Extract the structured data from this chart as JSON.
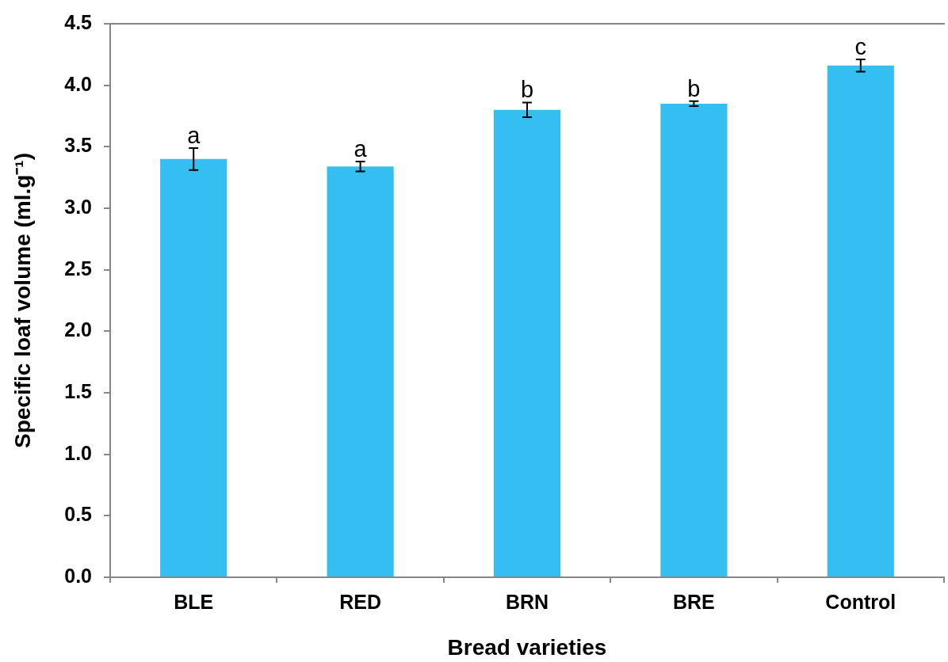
{
  "chart_data": {
    "type": "bar",
    "xlabel": "Bread varieties",
    "ylabel": "Specific loaf volume (ml.g⁻¹)",
    "categories": [
      "BLE",
      "RED",
      "BRN",
      "BRE",
      "Control"
    ],
    "values": [
      3.4,
      3.34,
      3.8,
      3.85,
      4.16
    ],
    "errors": [
      0.09,
      0.04,
      0.06,
      0.02,
      0.05
    ],
    "color": "#34bef2",
    "ylim": [
      0,
      4.5
    ],
    "yticks": [
      {
        "value": 0,
        "label": "0.0"
      },
      {
        "value": 0.5,
        "label": "0.5"
      },
      {
        "value": 1,
        "label": "1.0"
      },
      {
        "value": 1.5,
        "label": "1.5"
      },
      {
        "value": 2,
        "label": "2.0"
      },
      {
        "value": 2.5,
        "label": "2.5"
      },
      {
        "value": 3,
        "label": "3.0"
      },
      {
        "value": 3.5,
        "label": "3.5"
      },
      {
        "value": 4,
        "label": "4.0"
      },
      {
        "value": 4.5,
        "label": "4.5"
      }
    ],
    "annotations": [
      {
        "text": "a",
        "x": "BLE",
        "y": 3.4
      },
      {
        "text": "a",
        "x": "RED",
        "y": 3.34
      },
      {
        "text": "b",
        "x": "BRN",
        "y": 3.8
      },
      {
        "text": "b",
        "x": "BRE",
        "y": 3.85
      },
      {
        "text": "c",
        "x": "Control",
        "y": 4.16
      }
    ]
  }
}
